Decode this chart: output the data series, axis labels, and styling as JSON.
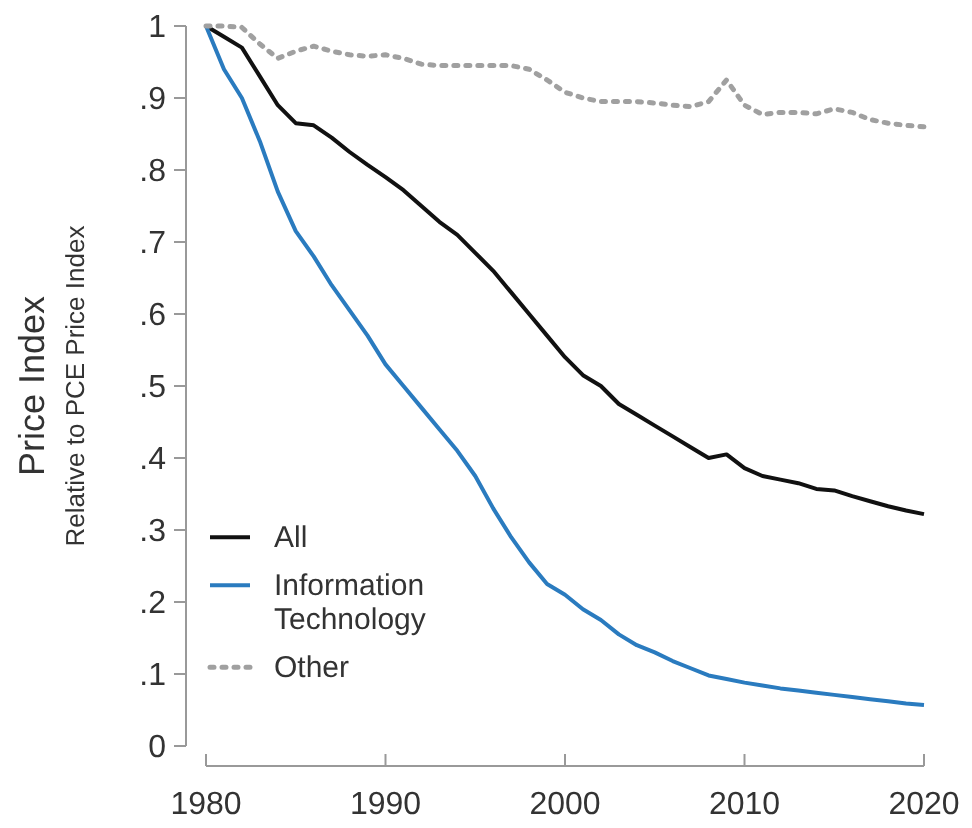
{
  "chart_data": {
    "type": "line",
    "ylabel": "Price Index",
    "subtitle": "Relative to PCE Price Index",
    "x": [
      1980,
      1981,
      1982,
      1983,
      1984,
      1985,
      1986,
      1987,
      1988,
      1989,
      1990,
      1991,
      1992,
      1993,
      1994,
      1995,
      1996,
      1997,
      1998,
      1999,
      2000,
      2001,
      2002,
      2003,
      2004,
      2005,
      2006,
      2007,
      2008,
      2009,
      2010,
      2011,
      2012,
      2013,
      2014,
      2015,
      2016,
      2017,
      2018,
      2019,
      2020
    ],
    "series": [
      {
        "name": "All",
        "color": "#111111",
        "line_style": "solid",
        "values": [
          1.0,
          0.985,
          0.97,
          0.93,
          0.89,
          0.865,
          0.862,
          0.845,
          0.825,
          0.807,
          0.79,
          0.772,
          0.75,
          0.728,
          0.71,
          0.685,
          0.66,
          0.63,
          0.6,
          0.57,
          0.54,
          0.515,
          0.5,
          0.475,
          0.46,
          0.445,
          0.43,
          0.415,
          0.4,
          0.405,
          0.386,
          0.375,
          0.37,
          0.365,
          0.357,
          0.355,
          0.347,
          0.34,
          0.333,
          0.327,
          0.322
        ]
      },
      {
        "name": "Information Technology",
        "color": "#2a7bbf",
        "line_style": "solid",
        "values": [
          1.0,
          0.94,
          0.9,
          0.84,
          0.77,
          0.715,
          0.68,
          0.64,
          0.605,
          0.57,
          0.53,
          0.5,
          0.47,
          0.44,
          0.41,
          0.375,
          0.33,
          0.29,
          0.255,
          0.225,
          0.21,
          0.19,
          0.175,
          0.155,
          0.14,
          0.13,
          0.118,
          0.108,
          0.098,
          0.093,
          0.088,
          0.084,
          0.08,
          0.077,
          0.074,
          0.071,
          0.068,
          0.065,
          0.062,
          0.059,
          0.057
        ]
      },
      {
        "name": "Other",
        "color": "#a0a0a0",
        "line_style": "dotted",
        "values": [
          1.0,
          1.0,
          0.998,
          0.975,
          0.955,
          0.965,
          0.972,
          0.965,
          0.96,
          0.958,
          0.96,
          0.955,
          0.947,
          0.945,
          0.945,
          0.945,
          0.945,
          0.945,
          0.94,
          0.925,
          0.908,
          0.9,
          0.895,
          0.895,
          0.895,
          0.893,
          0.89,
          0.888,
          0.895,
          0.925,
          0.89,
          0.877,
          0.88,
          0.88,
          0.878,
          0.885,
          0.88,
          0.87,
          0.865,
          0.862,
          0.86
        ]
      }
    ],
    "xlim": [
      1980,
      2020
    ],
    "xticks": [
      1980,
      1990,
      2000,
      2010,
      2020
    ],
    "ylim": [
      0,
      1
    ],
    "yticks": [
      0,
      {
        "value": 0.1,
        "label": ".1"
      },
      {
        "value": 0.2,
        "label": ".2"
      },
      {
        "value": 0.3,
        "label": ".3"
      },
      {
        "value": 0.4,
        "label": ".4"
      },
      {
        "value": 0.5,
        "label": ".5"
      },
      {
        "value": 0.6,
        "label": ".6"
      },
      {
        "value": 0.7,
        "label": ".7"
      },
      {
        "value": 0.8,
        "label": ".8"
      },
      {
        "value": 0.9,
        "label": ".9"
      },
      1
    ],
    "grid": false,
    "legend": "bottom left"
  }
}
